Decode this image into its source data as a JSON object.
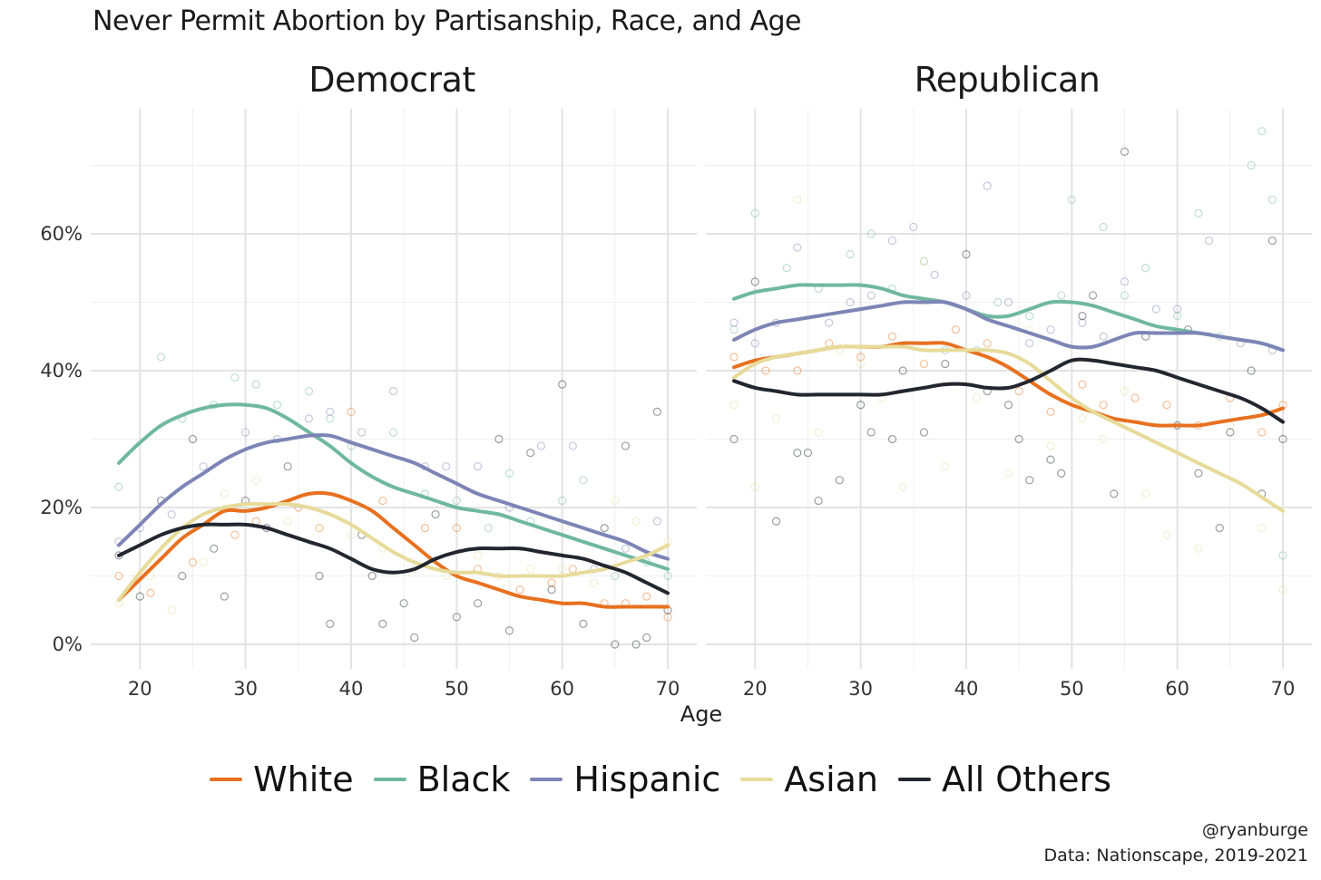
{
  "chart": {
    "title": "Never Permit Abortion by Partisanship, Race, and Age",
    "xlabel": "Age",
    "caption_handle": "@ryanburge",
    "caption_source": "Data: Nationscape, 2019-2021"
  },
  "legend": [
    {
      "name": "White",
      "color": "#E8701F"
    },
    {
      "name": "Black",
      "color": "#6FB8A0"
    },
    {
      "name": "Hispanic",
      "color": "#7C85B5"
    },
    {
      "name": "Asian",
      "color": "#E6DB99"
    },
    {
      "name": "All Others",
      "color": "#22262E"
    }
  ],
  "chart_data": [
    {
      "type": "line",
      "facet": "Democrat",
      "xlim": [
        16,
        72
      ],
      "ylim": [
        -3,
        72
      ],
      "xticks": [
        20,
        30,
        40,
        50,
        60,
        70
      ],
      "yticks": [
        0,
        20,
        40,
        60
      ],
      "ytick_labels": [
        "0%",
        "20%",
        "40%",
        "60%"
      ],
      "x": [
        18,
        20,
        22,
        24,
        26,
        28,
        30,
        32,
        34,
        36,
        38,
        40,
        42,
        44,
        46,
        48,
        50,
        52,
        54,
        56,
        58,
        60,
        62,
        64,
        66,
        68,
        70
      ],
      "series": [
        {
          "name": "White",
          "values": [
            6.5,
            9.5,
            12.5,
            15.5,
            17.5,
            19.5,
            19.5,
            20.0,
            21.0,
            22.0,
            22.0,
            21.0,
            19.5,
            17.0,
            14.5,
            12.0,
            10.0,
            9.0,
            8.0,
            7.0,
            6.5,
            6.0,
            6.0,
            5.5,
            5.5,
            5.5,
            5.5
          ]
        },
        {
          "name": "Black",
          "values": [
            26.5,
            29.5,
            32.0,
            33.5,
            34.5,
            35.0,
            35.0,
            34.5,
            33.0,
            31.0,
            29.0,
            26.5,
            24.5,
            23.0,
            22.0,
            21.0,
            20.0,
            19.5,
            19.0,
            18.0,
            17.0,
            16.0,
            15.0,
            14.0,
            13.0,
            12.0,
            11.0
          ]
        },
        {
          "name": "Hispanic",
          "values": [
            14.5,
            17.5,
            20.5,
            23.0,
            25.0,
            27.0,
            28.5,
            29.5,
            30.0,
            30.5,
            30.5,
            29.5,
            28.5,
            27.5,
            26.5,
            25.0,
            23.5,
            22.0,
            21.0,
            20.0,
            19.0,
            18.0,
            17.0,
            16.0,
            15.0,
            13.5,
            12.5
          ]
        },
        {
          "name": "Asian",
          "values": [
            6.5,
            10.5,
            14.0,
            17.0,
            19.0,
            20.0,
            20.5,
            20.5,
            20.5,
            20.0,
            19.0,
            17.5,
            15.5,
            13.5,
            12.0,
            11.0,
            10.5,
            10.5,
            10.0,
            10.0,
            10.0,
            10.0,
            10.5,
            11.0,
            12.0,
            13.0,
            14.5
          ]
        },
        {
          "name": "All Others",
          "values": [
            13.0,
            14.5,
            16.0,
            17.0,
            17.5,
            17.5,
            17.5,
            17.0,
            16.0,
            15.0,
            14.0,
            12.5,
            11.0,
            10.5,
            11.0,
            12.5,
            13.5,
            14.0,
            14.0,
            14.0,
            13.5,
            13.0,
            12.5,
            11.5,
            10.5,
            9.0,
            7.5
          ]
        }
      ],
      "points": [
        {
          "series": "White",
          "x": [
            18,
            21,
            25,
            29,
            31,
            35,
            37,
            40,
            43,
            47,
            50,
            52,
            56,
            59,
            61,
            64,
            66,
            68,
            70
          ],
          "y": [
            10,
            7.5,
            12,
            16,
            18,
            20,
            17,
            34,
            21,
            17,
            17,
            11,
            8,
            9,
            11,
            6,
            6,
            7,
            4
          ]
        },
        {
          "series": "Black",
          "x": [
            18,
            22,
            24,
            27,
            29,
            31,
            33,
            36,
            38,
            40,
            44,
            47,
            50,
            53,
            55,
            57,
            60,
            62,
            65,
            68,
            70
          ],
          "y": [
            23,
            42,
            33,
            35,
            39,
            38,
            35,
            37,
            33,
            29,
            31,
            22,
            21,
            17,
            25,
            18,
            21,
            24,
            10,
            12,
            10
          ]
        },
        {
          "series": "Hispanic",
          "x": [
            18,
            20,
            23,
            26,
            30,
            33,
            36,
            38,
            41,
            44,
            47,
            49,
            52,
            55,
            58,
            61,
            63,
            66,
            69
          ],
          "y": [
            15,
            17,
            19,
            26,
            31,
            30,
            33,
            34,
            31,
            37,
            26,
            26,
            26,
            20,
            29,
            29,
            11,
            14,
            18
          ]
        },
        {
          "series": "Asian",
          "x": [
            18,
            21,
            23,
            26,
            28,
            31,
            34,
            37,
            40,
            43,
            46,
            49,
            52,
            54,
            57,
            60,
            63,
            65,
            67,
            70
          ],
          "y": [
            6,
            10,
            5,
            12,
            22,
            24,
            18,
            17,
            16,
            14,
            11,
            10,
            13,
            10,
            11,
            11,
            9,
            21,
            18,
            15
          ]
        },
        {
          "series": "All Others",
          "x": [
            18,
            20,
            22,
            24,
            25,
            27,
            28,
            30,
            32,
            34,
            37,
            38,
            41,
            42,
            43,
            45,
            46,
            48,
            50,
            52,
            54,
            55,
            57,
            59,
            60,
            62,
            64,
            65,
            66,
            67,
            68,
            69,
            70
          ],
          "y": [
            13,
            7,
            21,
            10,
            30,
            14,
            7,
            21,
            17,
            26,
            10,
            3,
            16,
            10,
            3,
            6,
            1,
            19,
            4,
            6,
            30,
            2,
            28,
            8,
            38,
            3,
            17,
            0,
            29,
            0,
            1,
            34,
            5
          ]
        }
      ]
    },
    {
      "type": "line",
      "facet": "Republican",
      "xlim": [
        16,
        72
      ],
      "ylim": [
        -3,
        72
      ],
      "xticks": [
        20,
        30,
        40,
        50,
        60,
        70
      ],
      "yticks": [
        0,
        20,
        40,
        60
      ],
      "ytick_labels": [
        "0%",
        "20%",
        "40%",
        "60%"
      ],
      "x": [
        18,
        20,
        22,
        24,
        26,
        28,
        30,
        32,
        34,
        36,
        38,
        40,
        42,
        44,
        46,
        48,
        50,
        52,
        54,
        56,
        58,
        60,
        62,
        64,
        66,
        68,
        70
      ],
      "series": [
        {
          "name": "White",
          "values": [
            40.5,
            41.5,
            42.0,
            42.5,
            43.0,
            43.5,
            43.5,
            43.5,
            44.0,
            44.0,
            44.0,
            43.0,
            42.0,
            40.5,
            38.5,
            36.5,
            35.0,
            34.0,
            33.0,
            32.5,
            32.0,
            32.0,
            32.0,
            32.5,
            33.0,
            33.5,
            34.5
          ]
        },
        {
          "name": "Black",
          "values": [
            50.5,
            51.5,
            52.0,
            52.5,
            52.5,
            52.5,
            52.5,
            52.0,
            51.0,
            50.5,
            50.0,
            49.0,
            48.0,
            48.0,
            49.0,
            50.0,
            50.0,
            49.5,
            48.5,
            47.5,
            46.5,
            46.0,
            45.5,
            45.0,
            44.5,
            44.0,
            43.0
          ]
        },
        {
          "name": "Hispanic",
          "values": [
            44.5,
            46.0,
            47.0,
            47.5,
            48.0,
            48.5,
            49.0,
            49.5,
            50.0,
            50.0,
            50.0,
            49.0,
            47.5,
            46.5,
            45.5,
            44.5,
            43.5,
            43.5,
            44.5,
            45.5,
            45.5,
            45.5,
            45.5,
            45.0,
            44.5,
            44.0,
            43.0
          ]
        },
        {
          "name": "Asian",
          "values": [
            39.0,
            41.0,
            42.0,
            42.5,
            43.0,
            43.5,
            43.5,
            43.5,
            43.5,
            43.0,
            43.0,
            43.0,
            43.0,
            42.5,
            41.0,
            38.5,
            36.0,
            34.0,
            32.5,
            31.0,
            29.5,
            28.0,
            26.5,
            25.0,
            23.5,
            21.5,
            19.5
          ]
        },
        {
          "name": "All Others",
          "values": [
            38.5,
            37.5,
            37.0,
            36.5,
            36.5,
            36.5,
            36.5,
            36.5,
            37.0,
            37.5,
            38.0,
            38.0,
            37.5,
            37.5,
            38.5,
            40.0,
            41.5,
            41.5,
            41.0,
            40.5,
            40.0,
            39.0,
            38.0,
            37.0,
            36.0,
            34.5,
            32.5
          ]
        }
      ],
      "points": [
        {
          "series": "White",
          "x": [
            18,
            21,
            24,
            27,
            30,
            33,
            36,
            39,
            42,
            45,
            48,
            51,
            53,
            56,
            59,
            62,
            65,
            68,
            70
          ],
          "y": [
            42,
            40,
            40,
            44,
            42,
            45,
            41,
            46,
            44,
            37,
            34,
            38,
            35,
            36,
            35,
            32,
            36,
            31,
            35
          ]
        },
        {
          "series": "Black",
          "x": [
            18,
            20,
            23,
            26,
            29,
            31,
            33,
            36,
            38,
            41,
            43,
            46,
            49,
            50,
            53,
            55,
            57,
            60,
            62,
            64,
            67,
            68,
            69,
            70
          ],
          "y": [
            46,
            63,
            55,
            52,
            57,
            60,
            52,
            56,
            43,
            43,
            50,
            48,
            51,
            65,
            61,
            51,
            55,
            48,
            63,
            45,
            70,
            75,
            65,
            13
          ]
        },
        {
          "series": "Hispanic",
          "x": [
            18,
            20,
            22,
            24,
            27,
            29,
            31,
            33,
            35,
            37,
            40,
            42,
            44,
            46,
            48,
            51,
            53,
            55,
            58,
            60,
            63,
            66,
            69
          ],
          "y": [
            47,
            44,
            47,
            58,
            47,
            50,
            51,
            59,
            61,
            54,
            51,
            67,
            50,
            44,
            46,
            47,
            45,
            53,
            49,
            49,
            59,
            44,
            43
          ]
        },
        {
          "series": "Asian",
          "x": [
            18,
            20,
            22,
            24,
            26,
            28,
            30,
            32,
            34,
            36,
            38,
            41,
            44,
            46,
            48,
            51,
            53,
            55,
            57,
            59,
            62,
            65,
            68,
            70
          ],
          "y": [
            35,
            23,
            33,
            65,
            31,
            43,
            41,
            36,
            23,
            56,
            26,
            36,
            25,
            46,
            29,
            33,
            30,
            37,
            22,
            16,
            14,
            32,
            17,
            8
          ]
        },
        {
          "series": "All Others",
          "x": [
            18,
            20,
            22,
            24,
            25,
            26,
            28,
            30,
            31,
            33,
            34,
            36,
            38,
            40,
            42,
            44,
            45,
            46,
            48,
            49,
            51,
            52,
            54,
            55,
            57,
            60,
            61,
            62,
            64,
            65,
            67,
            68,
            69,
            70
          ],
          "y": [
            30,
            53,
            18,
            28,
            28,
            21,
            24,
            35,
            31,
            30,
            40,
            31,
            41,
            57,
            37,
            35,
            30,
            24,
            27,
            25,
            48,
            51,
            22,
            72,
            45,
            32,
            46,
            25,
            17,
            31,
            40,
            22,
            59,
            30
          ]
        }
      ]
    }
  ]
}
